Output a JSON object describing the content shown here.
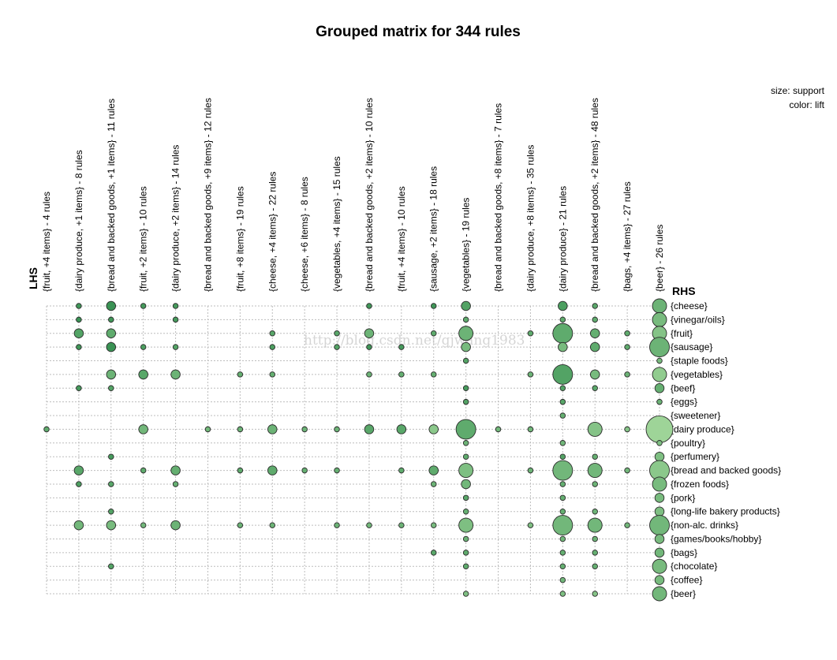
{
  "chart_data": {
    "type": "grouped matrix (balloon plot)",
    "title": "Grouped matrix for 344 rules",
    "lhs_axis_label": "LHS",
    "rhs_axis_label": "RHS",
    "legend": {
      "size": "size: support",
      "color": "color: lift",
      "placement": "top-right"
    },
    "watermark": "http://blog.csdn.net/gjwang1983",
    "lhs_groups": [
      "{fruit, +4 items} - 4 rules",
      "{dairy produce, +1 items} - 8 rules",
      "{bread and backed goods, +1 items} - 11 rules",
      "{fruit, +2 items} - 10 rules",
      "{dairy produce, +2 items} - 14 rules",
      "{bread and backed goods, +9 items} - 12 rules",
      "{fruit, +8 items} - 19 rules",
      "{cheese, +4 items} - 22 rules",
      "{cheese, +6 items} - 8 rules",
      "{vegetables, +4 items} - 15 rules",
      "{bread and backed goods, +2 items} - 10 rules",
      "{fruit, +4 items} - 10 rules",
      "{sausage, +2 items} - 18 rules",
      "{vegetables} - 19 rules",
      "{bread and backed goods, +8 items} - 7 rules",
      "{dairy produce, +8 items} - 35 rules",
      "{dairy produce} - 21 rules",
      "{bread and backed goods, +2 items} - 48 rules",
      "{bags, +4 items} - 27 rules",
      "{beer} - 26 rules"
    ],
    "rhs_items": [
      "{cheese}",
      "{vinegar/oils}",
      "{fruit}",
      "{sausage}",
      "{staple foods}",
      "{vegetables}",
      "{beef}",
      "{eggs}",
      "{sweetener}",
      "{dairy produce}",
      "{poultry}",
      "{perfumery}",
      "{bread and backed goods}",
      "{frozen foods}",
      "{pork}",
      "{long-life bakery products}",
      "{non-alc. drinks}",
      "{games/books/hobby}",
      "{bags}",
      "{chocolate}",
      "{coffee}",
      "{beer}"
    ],
    "bubbles_note": "each entry: [lhs_index, rhs_index, support_size_1_to_5, lift_shade_0_dark_to_1_light]",
    "bubbles": [
      [
        1,
        0,
        1,
        0.15
      ],
      [
        2,
        0,
        2,
        0.1
      ],
      [
        3,
        0,
        1,
        0.2
      ],
      [
        4,
        0,
        1,
        0.2
      ],
      [
        10,
        0,
        1,
        0.15
      ],
      [
        12,
        0,
        1,
        0.15
      ],
      [
        13,
        0,
        2,
        0.3
      ],
      [
        16,
        0,
        2,
        0.25
      ],
      [
        17,
        0,
        1,
        0.35
      ],
      [
        19,
        0,
        3,
        0.5
      ],
      [
        1,
        1,
        1,
        0.1
      ],
      [
        2,
        1,
        1,
        0.15
      ],
      [
        4,
        1,
        1,
        0.2
      ],
      [
        13,
        1,
        1,
        0.4
      ],
      [
        16,
        1,
        1,
        0.4
      ],
      [
        17,
        1,
        1,
        0.4
      ],
      [
        19,
        1,
        3,
        0.6
      ],
      [
        1,
        2,
        2,
        0.3
      ],
      [
        2,
        2,
        2,
        0.4
      ],
      [
        7,
        2,
        1,
        0.35
      ],
      [
        9,
        2,
        1,
        0.35
      ],
      [
        10,
        2,
        2,
        0.5
      ],
      [
        12,
        2,
        1,
        0.4
      ],
      [
        13,
        2,
        3,
        0.5
      ],
      [
        15,
        2,
        1,
        0.4
      ],
      [
        16,
        2,
        4,
        0.4
      ],
      [
        17,
        2,
        2,
        0.45
      ],
      [
        18,
        2,
        1,
        0.4
      ],
      [
        19,
        2,
        3,
        0.7
      ],
      [
        1,
        3,
        1,
        0.15
      ],
      [
        2,
        3,
        2,
        0.1
      ],
      [
        3,
        3,
        1,
        0.25
      ],
      [
        4,
        3,
        1,
        0.3
      ],
      [
        7,
        3,
        1,
        0.25
      ],
      [
        9,
        3,
        1,
        0.3
      ],
      [
        10,
        3,
        1,
        0.15
      ],
      [
        11,
        3,
        1,
        0.2
      ],
      [
        13,
        3,
        2,
        0.6
      ],
      [
        16,
        3,
        2,
        0.6
      ],
      [
        17,
        3,
        2,
        0.4
      ],
      [
        18,
        3,
        1,
        0.4
      ],
      [
        19,
        3,
        4,
        0.5
      ],
      [
        13,
        4,
        1,
        0.3
      ],
      [
        19,
        4,
        1,
        0.6
      ],
      [
        2,
        5,
        2,
        0.5
      ],
      [
        3,
        5,
        2,
        0.35
      ],
      [
        4,
        5,
        2,
        0.5
      ],
      [
        6,
        5,
        1,
        0.45
      ],
      [
        7,
        5,
        1,
        0.45
      ],
      [
        10,
        5,
        1,
        0.5
      ],
      [
        11,
        5,
        1,
        0.45
      ],
      [
        12,
        5,
        1,
        0.45
      ],
      [
        15,
        5,
        1,
        0.5
      ],
      [
        16,
        5,
        4,
        0.3
      ],
      [
        17,
        5,
        2,
        0.6
      ],
      [
        18,
        5,
        1,
        0.5
      ],
      [
        19,
        5,
        3,
        0.8
      ],
      [
        1,
        6,
        1,
        0.2
      ],
      [
        2,
        6,
        1,
        0.3
      ],
      [
        13,
        6,
        1,
        0.2
      ],
      [
        16,
        6,
        1,
        0.3
      ],
      [
        17,
        6,
        1,
        0.35
      ],
      [
        19,
        6,
        2,
        0.45
      ],
      [
        13,
        7,
        1,
        0.3
      ],
      [
        16,
        7,
        1,
        0.35
      ],
      [
        19,
        7,
        1,
        0.5
      ],
      [
        16,
        8,
        1,
        0.45
      ],
      [
        0,
        9,
        1,
        0.4
      ],
      [
        3,
        9,
        2,
        0.55
      ],
      [
        5,
        9,
        1,
        0.55
      ],
      [
        6,
        9,
        1,
        0.5
      ],
      [
        7,
        9,
        2,
        0.5
      ],
      [
        8,
        9,
        1,
        0.5
      ],
      [
        9,
        9,
        1,
        0.5
      ],
      [
        10,
        9,
        2,
        0.35
      ],
      [
        11,
        9,
        2,
        0.35
      ],
      [
        12,
        9,
        2,
        0.75
      ],
      [
        13,
        9,
        4,
        0.4
      ],
      [
        14,
        9,
        1,
        0.55
      ],
      [
        15,
        9,
        1,
        0.55
      ],
      [
        17,
        9,
        3,
        0.7
      ],
      [
        18,
        9,
        1,
        0.7
      ],
      [
        19,
        9,
        5,
        0.9
      ],
      [
        13,
        10,
        1,
        0.5
      ],
      [
        16,
        10,
        1,
        0.55
      ],
      [
        19,
        10,
        1,
        0.65
      ],
      [
        2,
        11,
        1,
        0.2
      ],
      [
        13,
        11,
        1,
        0.4
      ],
      [
        16,
        11,
        1,
        0.3
      ],
      [
        17,
        11,
        1,
        0.45
      ],
      [
        19,
        11,
        2,
        0.65
      ],
      [
        1,
        12,
        2,
        0.35
      ],
      [
        3,
        12,
        1,
        0.4
      ],
      [
        4,
        12,
        2,
        0.45
      ],
      [
        6,
        12,
        1,
        0.4
      ],
      [
        7,
        12,
        2,
        0.4
      ],
      [
        8,
        12,
        1,
        0.45
      ],
      [
        9,
        12,
        1,
        0.45
      ],
      [
        11,
        12,
        1,
        0.4
      ],
      [
        12,
        12,
        2,
        0.4
      ],
      [
        13,
        12,
        3,
        0.65
      ],
      [
        15,
        12,
        1,
        0.5
      ],
      [
        16,
        12,
        4,
        0.55
      ],
      [
        17,
        12,
        3,
        0.55
      ],
      [
        18,
        12,
        1,
        0.55
      ],
      [
        19,
        12,
        4,
        0.75
      ],
      [
        1,
        13,
        1,
        0.25
      ],
      [
        2,
        13,
        1,
        0.35
      ],
      [
        4,
        13,
        1,
        0.45
      ],
      [
        12,
        13,
        1,
        0.5
      ],
      [
        13,
        13,
        2,
        0.55
      ],
      [
        16,
        13,
        1,
        0.45
      ],
      [
        17,
        13,
        1,
        0.5
      ],
      [
        19,
        13,
        3,
        0.6
      ],
      [
        13,
        14,
        1,
        0.35
      ],
      [
        16,
        14,
        1,
        0.45
      ],
      [
        19,
        14,
        2,
        0.6
      ],
      [
        2,
        15,
        1,
        0.3
      ],
      [
        13,
        15,
        1,
        0.45
      ],
      [
        16,
        15,
        1,
        0.45
      ],
      [
        17,
        15,
        1,
        0.5
      ],
      [
        19,
        15,
        2,
        0.65
      ],
      [
        1,
        16,
        2,
        0.55
      ],
      [
        2,
        16,
        2,
        0.6
      ],
      [
        3,
        16,
        1,
        0.55
      ],
      [
        4,
        16,
        2,
        0.5
      ],
      [
        6,
        16,
        1,
        0.5
      ],
      [
        7,
        16,
        1,
        0.5
      ],
      [
        9,
        16,
        1,
        0.5
      ],
      [
        10,
        16,
        1,
        0.55
      ],
      [
        11,
        16,
        1,
        0.5
      ],
      [
        12,
        16,
        1,
        0.6
      ],
      [
        13,
        16,
        3,
        0.65
      ],
      [
        15,
        16,
        1,
        0.65
      ],
      [
        16,
        16,
        4,
        0.55
      ],
      [
        17,
        16,
        3,
        0.55
      ],
      [
        18,
        16,
        1,
        0.55
      ],
      [
        19,
        16,
        4,
        0.55
      ],
      [
        13,
        17,
        1,
        0.5
      ],
      [
        16,
        17,
        1,
        0.55
      ],
      [
        17,
        17,
        1,
        0.5
      ],
      [
        19,
        17,
        2,
        0.6
      ],
      [
        12,
        18,
        1,
        0.35
      ],
      [
        13,
        18,
        1,
        0.4
      ],
      [
        16,
        18,
        1,
        0.45
      ],
      [
        17,
        18,
        1,
        0.45
      ],
      [
        19,
        18,
        2,
        0.55
      ],
      [
        2,
        19,
        1,
        0.3
      ],
      [
        13,
        19,
        1,
        0.4
      ],
      [
        16,
        19,
        1,
        0.45
      ],
      [
        17,
        19,
        1,
        0.45
      ],
      [
        19,
        19,
        3,
        0.6
      ],
      [
        16,
        20,
        1,
        0.55
      ],
      [
        19,
        20,
        2,
        0.6
      ],
      [
        13,
        21,
        1,
        0.65
      ],
      [
        16,
        21,
        1,
        0.65
      ],
      [
        17,
        21,
        1,
        0.7
      ],
      [
        19,
        21,
        3,
        0.55
      ]
    ]
  }
}
